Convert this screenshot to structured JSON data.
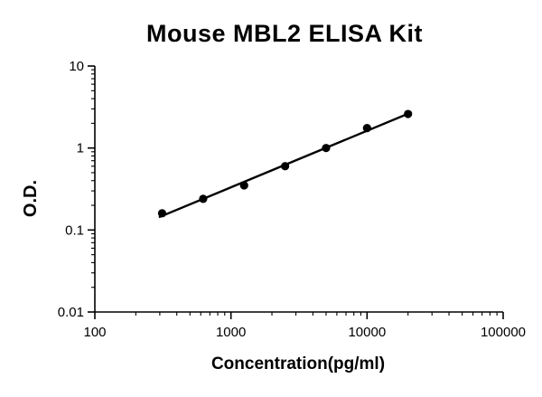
{
  "chart_data": {
    "type": "scatter",
    "title": "Mouse MBL2 ELISA Kit",
    "xlabel": "Concentration(pg/ml)",
    "ylabel": "O.D.",
    "x_scale": "log",
    "y_scale": "log",
    "xlim": [
      100,
      100000
    ],
    "ylim": [
      0.01,
      10
    ],
    "x_ticks": [
      "100",
      "1000",
      "10000",
      "100000"
    ],
    "y_ticks": [
      "10",
      "1",
      "0.1",
      "0.01"
    ],
    "x": [
      312,
      625,
      1250,
      2500,
      5000,
      10000,
      20000
    ],
    "y": [
      0.16,
      0.24,
      0.35,
      0.6,
      1.0,
      1.75,
      2.6
    ],
    "fit_line": {
      "x_start": 300,
      "x_end": 21000,
      "style": "linear-regression-loglog"
    },
    "grid": false,
    "legend": false,
    "colors": {
      "line": "#000000",
      "points": "#000000",
      "axis": "#000000",
      "background": "#ffffff"
    }
  }
}
